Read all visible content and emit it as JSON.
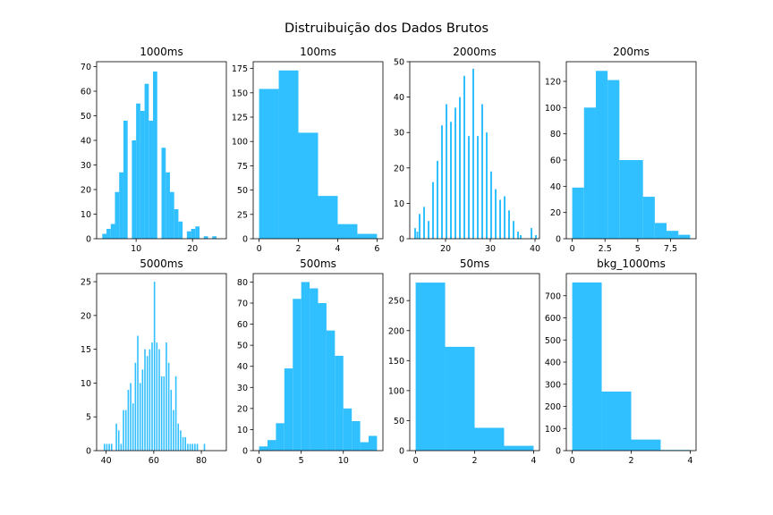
{
  "figure": {
    "suptitle": "Distruibuição dos Dados Brutos",
    "bar_color": "#30bfff"
  },
  "chart_data": [
    {
      "type": "bar",
      "title": "1000ms",
      "xlim": [
        3.0,
        26.0
      ],
      "ylim": [
        0,
        72
      ],
      "xticks": [
        10,
        20
      ],
      "yticks": [
        0,
        10,
        20,
        30,
        40,
        50,
        60,
        70
      ],
      "bins": [
        {
          "x0": 4.0,
          "x1": 4.75,
          "y": 2
        },
        {
          "x0": 4.75,
          "x1": 5.5,
          "y": 4
        },
        {
          "x0": 5.5,
          "x1": 6.25,
          "y": 6
        },
        {
          "x0": 6.25,
          "x1": 7.0,
          "y": 19
        },
        {
          "x0": 7.0,
          "x1": 7.75,
          "y": 27
        },
        {
          "x0": 7.75,
          "x1": 8.5,
          "y": 48
        },
        {
          "x0": 8.5,
          "x1": 9.25,
          "y": 0
        },
        {
          "x0": 9.25,
          "x1": 10.0,
          "y": 40
        },
        {
          "x0": 10.0,
          "x1": 10.75,
          "y": 55
        },
        {
          "x0": 10.75,
          "x1": 11.5,
          "y": 52
        },
        {
          "x0": 11.5,
          "x1": 12.25,
          "y": 63
        },
        {
          "x0": 12.25,
          "x1": 13.0,
          "y": 48
        },
        {
          "x0": 13.0,
          "x1": 13.75,
          "y": 68
        },
        {
          "x0": 13.75,
          "x1": 14.5,
          "y": 0
        },
        {
          "x0": 14.5,
          "x1": 15.25,
          "y": 37
        },
        {
          "x0": 15.25,
          "x1": 16.0,
          "y": 27
        },
        {
          "x0": 16.0,
          "x1": 16.75,
          "y": 19
        },
        {
          "x0": 16.75,
          "x1": 17.5,
          "y": 12
        },
        {
          "x0": 17.5,
          "x1": 18.25,
          "y": 7
        },
        {
          "x0": 18.25,
          "x1": 19.0,
          "y": 0
        },
        {
          "x0": 19.0,
          "x1": 19.75,
          "y": 3
        },
        {
          "x0": 19.75,
          "x1": 20.5,
          "y": 4
        },
        {
          "x0": 20.5,
          "x1": 21.25,
          "y": 5
        },
        {
          "x0": 21.25,
          "x1": 22.0,
          "y": 0
        },
        {
          "x0": 22.0,
          "x1": 22.75,
          "y": 1
        },
        {
          "x0": 22.75,
          "x1": 23.5,
          "y": 0
        },
        {
          "x0": 23.5,
          "x1": 24.25,
          "y": 1
        },
        {
          "x0": 24.25,
          "x1": 25.0,
          "y": 0
        }
      ]
    },
    {
      "type": "bar",
      "title": "100ms",
      "xlim": [
        -0.3,
        6.3
      ],
      "ylim": [
        0,
        182
      ],
      "xticks": [
        0,
        2,
        4,
        6
      ],
      "yticks": [
        0,
        25,
        50,
        75,
        100,
        125,
        150,
        175
      ],
      "bins": [
        {
          "x0": 0.0,
          "x1": 1.0,
          "y": 154
        },
        {
          "x0": 1.0,
          "x1": 2.0,
          "y": 173
        },
        {
          "x0": 2.0,
          "x1": 3.0,
          "y": 109
        },
        {
          "x0": 3.0,
          "x1": 4.0,
          "y": 44
        },
        {
          "x0": 4.0,
          "x1": 5.0,
          "y": 15
        },
        {
          "x0": 5.0,
          "x1": 6.0,
          "y": 5
        }
      ]
    },
    {
      "type": "bar",
      "title": "2000ms",
      "xlim": [
        12.0,
        41.0
      ],
      "ylim": [
        0,
        50
      ],
      "xticks": [
        20,
        30,
        40
      ],
      "yticks": [
        0,
        10,
        20,
        30,
        40,
        50
      ],
      "bins": [
        {
          "x0": 13.0,
          "x1": 13.4,
          "y": 3
        },
        {
          "x0": 13.5,
          "x1": 13.9,
          "y": 2
        },
        {
          "x0": 14.0,
          "x1": 14.4,
          "y": 7
        },
        {
          "x0": 15.0,
          "x1": 15.4,
          "y": 9
        },
        {
          "x0": 16.0,
          "x1": 16.4,
          "y": 5
        },
        {
          "x0": 17.0,
          "x1": 17.4,
          "y": 16
        },
        {
          "x0": 18.0,
          "x1": 18.4,
          "y": 22
        },
        {
          "x0": 19.0,
          "x1": 19.4,
          "y": 32
        },
        {
          "x0": 20.0,
          "x1": 20.4,
          "y": 38
        },
        {
          "x0": 21.0,
          "x1": 21.4,
          "y": 33
        },
        {
          "x0": 22.0,
          "x1": 22.4,
          "y": 37
        },
        {
          "x0": 23.0,
          "x1": 23.4,
          "y": 40
        },
        {
          "x0": 24.0,
          "x1": 24.4,
          "y": 46
        },
        {
          "x0": 25.0,
          "x1": 25.4,
          "y": 29
        },
        {
          "x0": 26.0,
          "x1": 26.4,
          "y": 48
        },
        {
          "x0": 27.0,
          "x1": 27.4,
          "y": 29
        },
        {
          "x0": 28.0,
          "x1": 28.4,
          "y": 38
        },
        {
          "x0": 29.0,
          "x1": 29.4,
          "y": 30
        },
        {
          "x0": 30.0,
          "x1": 30.4,
          "y": 19
        },
        {
          "x0": 31.0,
          "x1": 31.4,
          "y": 14
        },
        {
          "x0": 32.0,
          "x1": 32.4,
          "y": 11
        },
        {
          "x0": 33.0,
          "x1": 33.4,
          "y": 12
        },
        {
          "x0": 34.0,
          "x1": 34.4,
          "y": 8
        },
        {
          "x0": 35.0,
          "x1": 35.4,
          "y": 5
        },
        {
          "x0": 36.0,
          "x1": 36.4,
          "y": 2
        },
        {
          "x0": 36.6,
          "x1": 37.0,
          "y": 1
        },
        {
          "x0": 39.0,
          "x1": 39.4,
          "y": 3
        },
        {
          "x0": 40.0,
          "x1": 40.4,
          "y": 1
        }
      ]
    },
    {
      "type": "bar",
      "title": "200ms",
      "xlim": [
        -0.45,
        9.45
      ],
      "ylim": [
        0,
        135
      ],
      "xticks": [
        0.0,
        2.5,
        5.0,
        7.5
      ],
      "yticks": [
        0,
        20,
        40,
        60,
        80,
        100,
        120
      ],
      "bins": [
        {
          "x0": 0.0,
          "x1": 0.9,
          "y": 39
        },
        {
          "x0": 0.9,
          "x1": 1.8,
          "y": 100
        },
        {
          "x0": 1.8,
          "x1": 2.7,
          "y": 128
        },
        {
          "x0": 2.7,
          "x1": 3.6,
          "y": 121
        },
        {
          "x0": 3.6,
          "x1": 4.5,
          "y": 60
        },
        {
          "x0": 4.5,
          "x1": 5.4,
          "y": 60
        },
        {
          "x0": 5.4,
          "x1": 6.3,
          "y": 32
        },
        {
          "x0": 6.3,
          "x1": 7.2,
          "y": 12
        },
        {
          "x0": 7.2,
          "x1": 8.1,
          "y": 6
        },
        {
          "x0": 8.1,
          "x1": 9.0,
          "y": 3
        }
      ]
    },
    {
      "type": "bar",
      "title": "5000ms",
      "xlim": [
        36.0,
        90.5
      ],
      "ylim": [
        0,
        26.2
      ],
      "xticks": [
        40,
        60,
        80
      ],
      "yticks": [
        0,
        5,
        10,
        15,
        20,
        25
      ],
      "bins": [
        {
          "x0": 39.0,
          "x1": 39.6,
          "y": 1
        },
        {
          "x0": 40.0,
          "x1": 40.6,
          "y": 1
        },
        {
          "x0": 41.0,
          "x1": 41.6,
          "y": 1
        },
        {
          "x0": 42.0,
          "x1": 42.6,
          "y": 1
        },
        {
          "x0": 44.0,
          "x1": 44.6,
          "y": 4
        },
        {
          "x0": 45.0,
          "x1": 45.6,
          "y": 3
        },
        {
          "x0": 46.0,
          "x1": 46.6,
          "y": 1
        },
        {
          "x0": 47.0,
          "x1": 47.6,
          "y": 6
        },
        {
          "x0": 48.0,
          "x1": 48.6,
          "y": 6
        },
        {
          "x0": 49.0,
          "x1": 49.6,
          "y": 9
        },
        {
          "x0": 50.0,
          "x1": 50.6,
          "y": 10
        },
        {
          "x0": 51.0,
          "x1": 51.6,
          "y": 7
        },
        {
          "x0": 52.0,
          "x1": 52.6,
          "y": 13
        },
        {
          "x0": 53.0,
          "x1": 53.6,
          "y": 17
        },
        {
          "x0": 54.0,
          "x1": 54.6,
          "y": 10
        },
        {
          "x0": 55.0,
          "x1": 55.6,
          "y": 12
        },
        {
          "x0": 56.0,
          "x1": 56.6,
          "y": 15
        },
        {
          "x0": 57.0,
          "x1": 57.6,
          "y": 14
        },
        {
          "x0": 58.0,
          "x1": 58.6,
          "y": 15
        },
        {
          "x0": 59.0,
          "x1": 59.6,
          "y": 16
        },
        {
          "x0": 60.0,
          "x1": 60.6,
          "y": 25
        },
        {
          "x0": 61.0,
          "x1": 61.6,
          "y": 16
        },
        {
          "x0": 62.0,
          "x1": 62.6,
          "y": 15
        },
        {
          "x0": 63.0,
          "x1": 63.6,
          "y": 11
        },
        {
          "x0": 64.0,
          "x1": 64.6,
          "y": 11
        },
        {
          "x0": 65.0,
          "x1": 65.6,
          "y": 16
        },
        {
          "x0": 66.0,
          "x1": 66.6,
          "y": 13
        },
        {
          "x0": 67.0,
          "x1": 67.6,
          "y": 9
        },
        {
          "x0": 68.0,
          "x1": 68.6,
          "y": 6
        },
        {
          "x0": 69.0,
          "x1": 69.6,
          "y": 11
        },
        {
          "x0": 70.0,
          "x1": 70.6,
          "y": 4
        },
        {
          "x0": 71.0,
          "x1": 71.6,
          "y": 3
        },
        {
          "x0": 72.0,
          "x1": 72.6,
          "y": 2
        },
        {
          "x0": 73.0,
          "x1": 73.6,
          "y": 2
        },
        {
          "x0": 74.0,
          "x1": 74.6,
          "y": 1
        },
        {
          "x0": 75.0,
          "x1": 75.6,
          "y": 1
        },
        {
          "x0": 76.0,
          "x1": 76.6,
          "y": 1
        },
        {
          "x0": 77.0,
          "x1": 77.6,
          "y": 1
        },
        {
          "x0": 78.0,
          "x1": 78.6,
          "y": 1
        },
        {
          "x0": 81.0,
          "x1": 81.6,
          "y": 1
        }
      ]
    },
    {
      "type": "bar",
      "title": "500ms",
      "xlim": [
        -0.7,
        14.7
      ],
      "ylim": [
        0,
        84
      ],
      "xticks": [
        0,
        5,
        10
      ],
      "yticks": [
        0,
        10,
        20,
        30,
        40,
        50,
        60,
        70,
        80
      ],
      "bins": [
        {
          "x0": 0.0,
          "x1": 1.0,
          "y": 2
        },
        {
          "x0": 1.0,
          "x1": 2.0,
          "y": 5
        },
        {
          "x0": 2.0,
          "x1": 3.0,
          "y": 13
        },
        {
          "x0": 3.0,
          "x1": 4.0,
          "y": 39
        },
        {
          "x0": 4.0,
          "x1": 5.0,
          "y": 72
        },
        {
          "x0": 5.0,
          "x1": 6.0,
          "y": 80
        },
        {
          "x0": 6.0,
          "x1": 7.0,
          "y": 77
        },
        {
          "x0": 7.0,
          "x1": 8.0,
          "y": 70
        },
        {
          "x0": 8.0,
          "x1": 9.0,
          "y": 57
        },
        {
          "x0": 9.0,
          "x1": 10.0,
          "y": 45
        },
        {
          "x0": 10.0,
          "x1": 11.0,
          "y": 20
        },
        {
          "x0": 11.0,
          "x1": 12.0,
          "y": 14
        },
        {
          "x0": 12.0,
          "x1": 13.0,
          "y": 4
        },
        {
          "x0": 13.0,
          "x1": 14.0,
          "y": 7
        }
      ]
    },
    {
      "type": "bar",
      "title": "50ms",
      "xlim": [
        -0.2,
        4.2
      ],
      "ylim": [
        0,
        295
      ],
      "xticks": [
        0,
        2,
        4
      ],
      "yticks": [
        0,
        50,
        100,
        150,
        200,
        250
      ],
      "bins": [
        {
          "x0": 0.0,
          "x1": 1.0,
          "y": 280
        },
        {
          "x0": 1.0,
          "x1": 2.0,
          "y": 173
        },
        {
          "x0": 2.0,
          "x1": 3.0,
          "y": 38
        },
        {
          "x0": 3.0,
          "x1": 4.0,
          "y": 8
        }
      ]
    },
    {
      "type": "bar",
      "title": "bkg_1000ms",
      "xlim": [
        -0.2,
        4.2
      ],
      "ylim": [
        0,
        800
      ],
      "xticks": [
        0,
        2,
        4
      ],
      "yticks": [
        0,
        100,
        200,
        300,
        400,
        500,
        600,
        700
      ],
      "bins": [
        {
          "x0": 0.0,
          "x1": 1.0,
          "y": 760
        },
        {
          "x0": 1.0,
          "x1": 2.0,
          "y": 267
        },
        {
          "x0": 2.0,
          "x1": 3.0,
          "y": 50
        },
        {
          "x0": 3.0,
          "x1": 4.0,
          "y": 3
        }
      ]
    }
  ]
}
